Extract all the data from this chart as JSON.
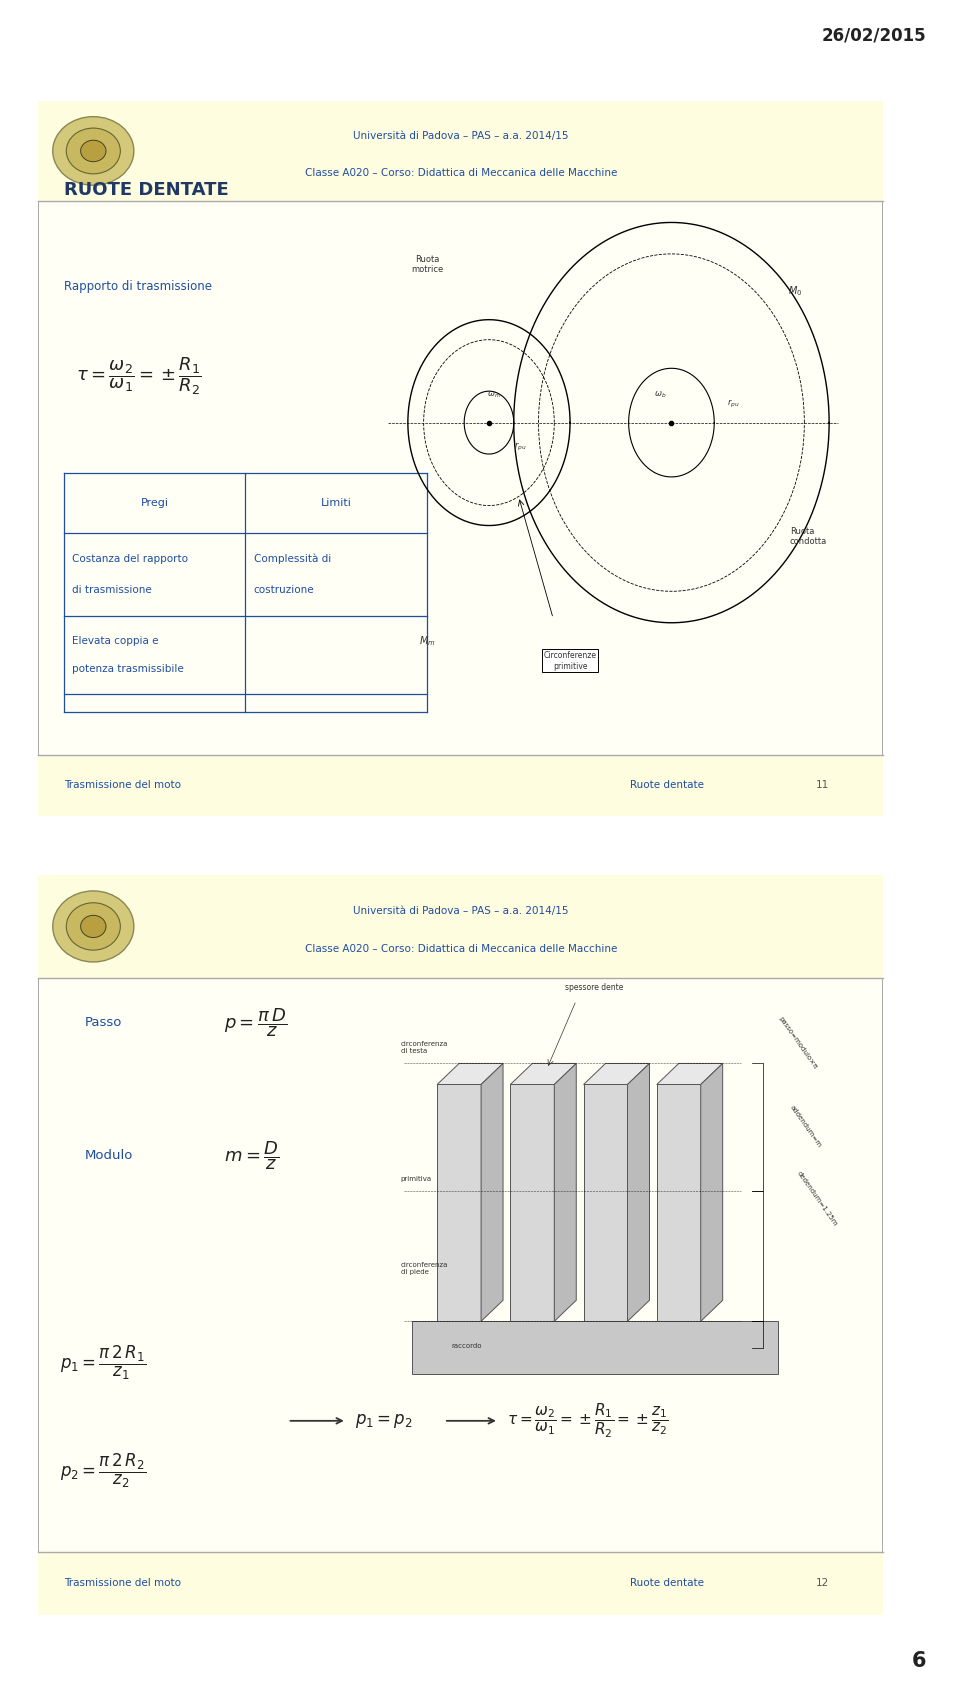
{
  "bg_color": "#ffffff",
  "slide_bg": "#fffff5",
  "header_bg": "#fffff0",
  "border_color": "#aaaaaa",
  "blue_dark": "#1f3864",
  "blue_mid": "#2e4da3",
  "blue_text": "#1f4da0",
  "date_text": "26/02/2015",
  "page_num": "6",
  "slide1": {
    "header_line1": "Università di Padova – PAS – a.a. 2014/15",
    "header_line2": "Classe A020 – Corso: Didattica di Meccanica delle Macchine",
    "title": "RUOTE DENTATE",
    "sub1": "Rapporto di trasmissione",
    "footer_left": "Trasmissione del moto",
    "footer_right": "Ruote dentate",
    "footer_num": "11"
  },
  "slide2": {
    "header_line1": "Università di Padova – PAS – a.a. 2014/15",
    "header_line2": "Classe A020 – Corso: Didattica di Meccanica delle Macchine",
    "label_passo": "Passo",
    "label_modulo": "Modulo",
    "footer_left": "Trasmissione del moto",
    "footer_right": "Ruote dentate",
    "footer_num": "12"
  }
}
